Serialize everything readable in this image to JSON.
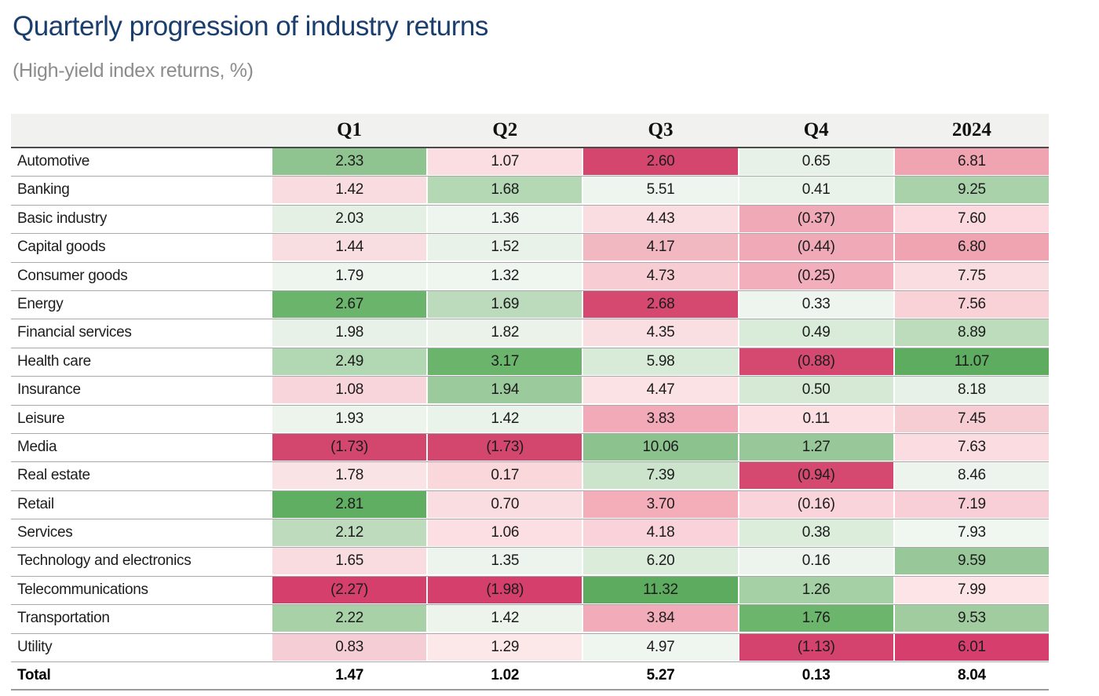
{
  "title": "Quarterly progression of industry returns",
  "subtitle": "(High-yield index returns, %)",
  "palette": {
    "strong_negative": "#d5466f",
    "strong_positive": "#5cab5e",
    "neutral": "#ffffff",
    "header_background": "#f1f1f0",
    "header_rule": "#4a4a4a",
    "row_rule": "#a9a9ab",
    "bottom_rule": "#9b9b9b",
    "title_color": "#1a3e6e",
    "subtitle_color": "#8c8c8c"
  },
  "table": {
    "columns": [
      "",
      "Q1",
      "Q2",
      "Q3",
      "Q4",
      "2024"
    ],
    "rows": [
      {
        "label": "Automotive",
        "values": [
          "2.33",
          "1.07",
          "2.60",
          "0.65",
          "6.81"
        ],
        "colors": [
          "#8fc490",
          "#fbdee1",
          "#d5466f",
          "#e7f1e7",
          "#f0a3b1"
        ]
      },
      {
        "label": "Banking",
        "values": [
          "1.42",
          "1.68",
          "5.51",
          "0.41",
          "9.25"
        ],
        "colors": [
          "#f9dce0",
          "#b4d7b4",
          "#eef4ee",
          "#eaf3ea",
          "#aad2aa"
        ]
      },
      {
        "label": "Basic industry",
        "values": [
          "2.03",
          "1.36",
          "4.43",
          "(0.37)",
          "7.60"
        ],
        "colors": [
          "#e3f0e3",
          "#eef5ee",
          "#fadde0",
          "#f0a9b6",
          "#fbd9de"
        ]
      },
      {
        "label": "Capital goods",
        "values": [
          "1.44",
          "1.52",
          "4.17",
          "(0.44)",
          "6.80"
        ],
        "colors": [
          "#f9dee1",
          "#e9f2e9",
          "#f2b8c2",
          "#f0a9b6",
          "#f0a4b2"
        ]
      },
      {
        "label": "Consumer goods",
        "values": [
          "1.79",
          "1.32",
          "4.73",
          "(0.25)",
          "7.75"
        ],
        "colors": [
          "#eef5ee",
          "#eff5ef",
          "#f7ccd3",
          "#f2aeba",
          "#fadde0"
        ]
      },
      {
        "label": "Energy",
        "values": [
          "2.67",
          "1.69",
          "2.68",
          "0.33",
          "7.56"
        ],
        "colors": [
          "#6ab46c",
          "#bcdabc",
          "#d5486f",
          "#eef5ee",
          "#f9d2d8"
        ]
      },
      {
        "label": "Financial services",
        "values": [
          "1.98",
          "1.82",
          "4.35",
          "0.49",
          "8.89"
        ],
        "colors": [
          "#e7f1e7",
          "#eaf2ea",
          "#fadfe2",
          "#d9ebd9",
          "#bcdcbc"
        ]
      },
      {
        "label": "Health care",
        "values": [
          "2.49",
          "3.17",
          "5.98",
          "(0.88)",
          "11.07"
        ],
        "colors": [
          "#b2d7b3",
          "#6ab46c",
          "#d8ead8",
          "#d54970",
          "#5dac60"
        ]
      },
      {
        "label": "Insurance",
        "values": [
          "1.08",
          "1.94",
          "4.47",
          "0.50",
          "8.18"
        ],
        "colors": [
          "#f7d5da",
          "#9bca9c",
          "#fbe2e4",
          "#d5e9d5",
          "#e7f1e7"
        ]
      },
      {
        "label": "Leisure",
        "values": [
          "1.93",
          "1.42",
          "3.83",
          "0.11",
          "7.45"
        ],
        "colors": [
          "#ecf4ec",
          "#eaf3ea",
          "#f2aab8",
          "#fbdfe3",
          "#f7cdd4"
        ]
      },
      {
        "label": "Media",
        "values": [
          "(1.73)",
          "(1.73)",
          "10.06",
          "1.27",
          "7.63"
        ],
        "colors": [
          "#d3476f",
          "#d3476f",
          "#8cc28e",
          "#98c899",
          "#fbdce1"
        ]
      },
      {
        "label": "Real estate",
        "values": [
          "1.78",
          "0.17",
          "7.39",
          "(0.94)",
          "8.46"
        ],
        "colors": [
          "#fae3e5",
          "#f9d7db",
          "#cce3cc",
          "#d54970",
          "#edf4ed"
        ]
      },
      {
        "label": "Retail",
        "values": [
          "2.81",
          "0.70",
          "3.70",
          "(0.16)",
          "7.19"
        ],
        "colors": [
          "#5fae62",
          "#fadde0",
          "#f3aeba",
          "#f9d4da",
          "#f8cfd6"
        ]
      },
      {
        "label": "Services",
        "values": [
          "2.12",
          "1.06",
          "4.18",
          "0.38",
          "7.93"
        ],
        "colors": [
          "#bedcbd",
          "#fbdfe2",
          "#f9d3d9",
          "#dceddc",
          "#f0f6f0"
        ]
      },
      {
        "label": "Technology and electronics",
        "values": [
          "1.65",
          "1.35",
          "6.20",
          "0.16",
          "9.59"
        ],
        "colors": [
          "#f9dce0",
          "#edf4ed",
          "#dbecdb",
          "#edf4ed",
          "#98c899"
        ]
      },
      {
        "label": "Telecommunications",
        "values": [
          "(2.27)",
          "(1.98)",
          "11.32",
          "1.26",
          "7.99"
        ],
        "colors": [
          "#d43f6c",
          "#d43f6c",
          "#5cab5e",
          "#a5d0a5",
          "#fce4e7"
        ]
      },
      {
        "label": "Transportation",
        "values": [
          "2.22",
          "1.42",
          "3.84",
          "1.76",
          "9.53"
        ],
        "colors": [
          "#a8d1a8",
          "#ecf4ec",
          "#f2abb8",
          "#6cb56d",
          "#a0cca0"
        ]
      },
      {
        "label": "Utility",
        "values": [
          "0.83",
          "1.29",
          "4.97",
          "(1.13)",
          "6.01"
        ],
        "colors": [
          "#f5ced5",
          "#fce7e9",
          "#eff5ef",
          "#d4436e",
          "#d63f6d"
        ]
      },
      {
        "label": "Total",
        "values": [
          "1.47",
          "1.02",
          "5.27",
          "0.13",
          "8.04"
        ],
        "colors": [
          "#ffffff",
          "#ffffff",
          "#ffffff",
          "#ffffff",
          "#ffffff"
        ],
        "bold": true
      }
    ]
  },
  "chart_data": {
    "type": "heatmap",
    "title": "Quarterly progression of industry returns",
    "subtitle": "(High-yield index returns, %)",
    "x_categories": [
      "Q1",
      "Q2",
      "Q3",
      "Q4",
      "2024"
    ],
    "y_categories": [
      "Automotive",
      "Banking",
      "Basic industry",
      "Capital goods",
      "Consumer goods",
      "Energy",
      "Financial services",
      "Health care",
      "Insurance",
      "Leisure",
      "Media",
      "Real estate",
      "Retail",
      "Services",
      "Technology and electronics",
      "Telecommunications",
      "Transportation",
      "Utility"
    ],
    "values": [
      [
        2.33,
        1.07,
        2.6,
        0.65,
        6.81
      ],
      [
        1.42,
        1.68,
        5.51,
        0.41,
        9.25
      ],
      [
        2.03,
        1.36,
        4.43,
        -0.37,
        7.6
      ],
      [
        1.44,
        1.52,
        4.17,
        -0.44,
        6.8
      ],
      [
        1.79,
        1.32,
        4.73,
        -0.25,
        7.75
      ],
      [
        2.67,
        1.69,
        2.68,
        0.33,
        7.56
      ],
      [
        1.98,
        1.82,
        4.35,
        0.49,
        8.89
      ],
      [
        2.49,
        3.17,
        5.98,
        -0.88,
        11.07
      ],
      [
        1.08,
        1.94,
        4.47,
        0.5,
        8.18
      ],
      [
        1.93,
        1.42,
        3.83,
        0.11,
        7.45
      ],
      [
        -1.73,
        -1.73,
        10.06,
        1.27,
        7.63
      ],
      [
        1.78,
        0.17,
        7.39,
        -0.94,
        8.46
      ],
      [
        2.81,
        0.7,
        3.7,
        -0.16,
        7.19
      ],
      [
        2.12,
        1.06,
        4.18,
        0.38,
        7.93
      ],
      [
        1.65,
        1.35,
        6.2,
        0.16,
        9.59
      ],
      [
        -2.27,
        -1.98,
        11.32,
        1.26,
        7.99
      ],
      [
        2.22,
        1.42,
        3.84,
        1.76,
        9.53
      ],
      [
        0.83,
        1.29,
        4.97,
        -1.13,
        6.01
      ]
    ],
    "totals_row": {
      "label": "Total",
      "values": [
        1.47,
        1.02,
        5.27,
        0.13,
        8.04
      ]
    },
    "value_format": "negative values shown in parentheses",
    "color_scale": {
      "low": "#d5466f",
      "mid": "#ffffff",
      "high": "#5cab5e",
      "scaled": "per column"
    },
    "legend": "none",
    "grid": "thin gray row separators"
  }
}
